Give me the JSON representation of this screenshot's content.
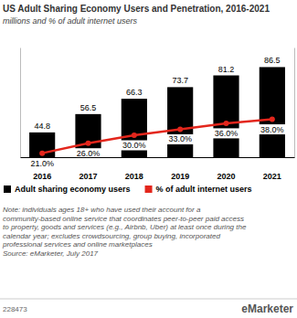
{
  "chart_data": {
    "type": "bar",
    "title": "US Adult Sharing Economy Users and Penetration, 2016-2021",
    "subtitle": "millions and % of adult internet users",
    "categories": [
      "2016",
      "2017",
      "2018",
      "2019",
      "2020",
      "2021"
    ],
    "series": [
      {
        "name": "Adult sharing economy users",
        "type": "bar",
        "color": "#000000",
        "values": [
          44.8,
          56.5,
          66.3,
          73.7,
          81.2,
          86.5
        ]
      },
      {
        "name": "% of adult internet users",
        "type": "line",
        "axis": "y2",
        "color": "#e3261c",
        "marker": "circle",
        "values": [
          21,
          26,
          30,
          33,
          36,
          38
        ],
        "value_labels": [
          "21.0%",
          "26.0%",
          "30.0%",
          "33.0%",
          "36.0%",
          "38.0%"
        ]
      }
    ],
    "ylim": [
      29,
      99
    ],
    "yticks": [],
    "y2lim": [
      19,
      74
    ],
    "y2ticks": [],
    "grid": false,
    "legend": "bottom",
    "data_labels": true,
    "tick_labels": "x",
    "note": [
      "Note: individuals ages 18+ who have used their account for a",
      "community-based online service that coordinates peer-to-peer paid access",
      "to property, goods and services (e.g., Airbnb, Uber) at least once during the",
      "calendar year; excludes crowdsourcing, group buying, incorporated",
      "professional services and online marketplaces"
    ],
    "source": "Source: eMarketer, July 2017",
    "chart_id": "228473",
    "brand": "eMarketer"
  }
}
